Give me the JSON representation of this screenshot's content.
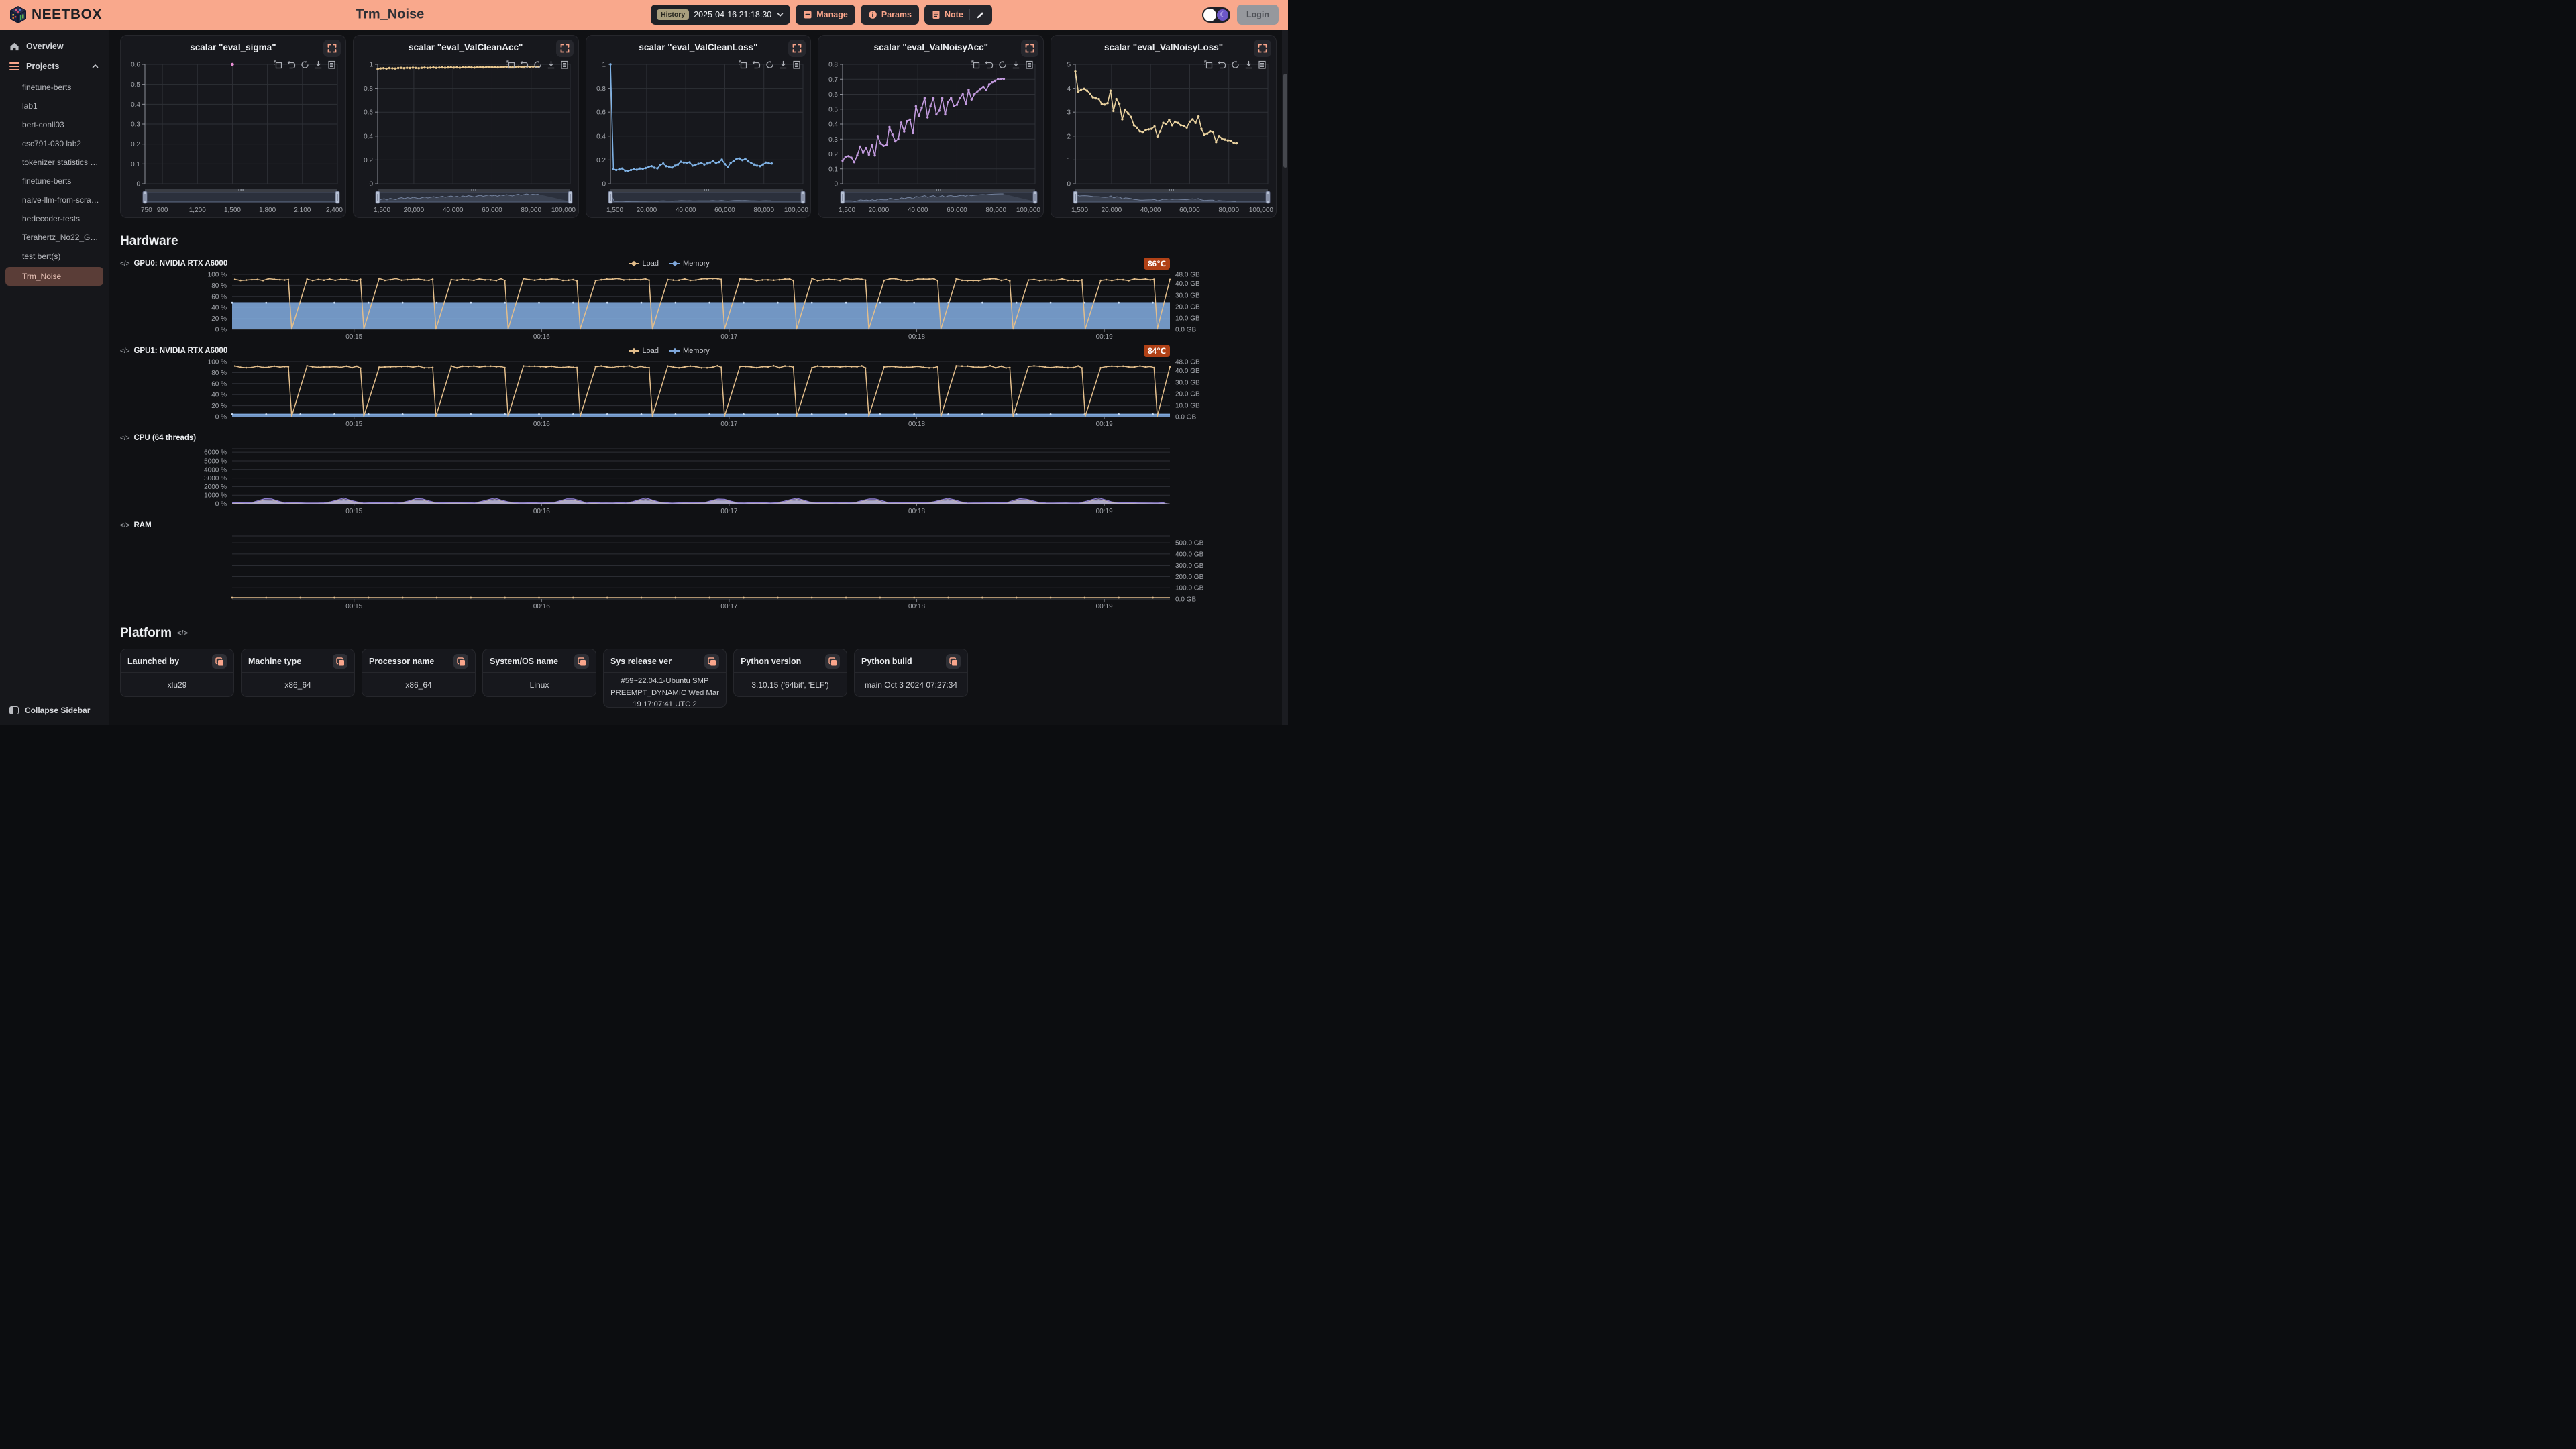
{
  "header": {
    "logo_text": "NEETBOX",
    "page_title": "Trm_Noise",
    "history_badge": "History",
    "history_value": "2025-04-16 21:18:30",
    "manage_label": "Manage",
    "params_label": "Params",
    "note_label": "Note",
    "login_label": "Login",
    "accent_color": "#F9A58B",
    "header_bg": "#F9A88C"
  },
  "sidebar": {
    "overview_label": "Overview",
    "projects_label": "Projects",
    "projects": [
      "finetune-berts",
      "lab1",
      "bert-conll03",
      "csc791-030 lab2",
      "tokenizer statistics llama…",
      "finetune-berts",
      "naive-llm-from-scratch",
      "hedecoder-tests",
      "Terahertz_No22_Gl261_gl…",
      "test bert(s)",
      "Trm_Noise"
    ],
    "selected": "Trm_Noise",
    "collapse_label": "Collapse Sidebar"
  },
  "sections": {
    "hardware_title": "Hardware",
    "platform_title": "Platform"
  },
  "ui": {
    "code_glyph": "</>",
    "moon_glyph": "☾",
    "toolbox_icons": [
      "zoom-select",
      "restore",
      "refresh",
      "download",
      "data-view"
    ],
    "temp_badge_color": "#b04116"
  },
  "platform": {
    "cards": [
      {
        "label": "Launched by",
        "value": "xlu29"
      },
      {
        "label": "Machine type",
        "value": "x86_64"
      },
      {
        "label": "Processor name",
        "value": "x86_64"
      },
      {
        "label": "System/OS name",
        "value": "Linux"
      },
      {
        "label": "Sys release ver",
        "value": "#59~22.04.1-Ubuntu SMP PREEMPT_DYNAMIC Wed Mar 19 17:07:41 UTC 2"
      },
      {
        "label": "Python version",
        "value": "3.10.15 ('64bit', 'ELF')"
      },
      {
        "label": "Python build",
        "value": "main Oct 3 2024 07:27:34"
      }
    ]
  },
  "chart_data": [
    {
      "kind": "scalar",
      "type": "scatter",
      "title": "scalar \"eval_sigma\"",
      "color": "#E88FD5",
      "x_range": [
        750,
        2400
      ],
      "x_tick_vals": [
        750,
        900,
        1200,
        1500,
        1800,
        2100,
        2400
      ],
      "x_tick_labels": [
        "750",
        "900",
        "1,200",
        "1,500",
        "1,800",
        "2,100",
        "2,400"
      ],
      "y_range": [
        0,
        0.6
      ],
      "y_tick_vals": [
        0,
        0.1,
        0.2,
        0.3,
        0.4,
        0.5,
        0.6
      ],
      "y_tick_labels": [
        "0",
        "0.1",
        "0.2",
        "0.3",
        "0.4",
        "0.5",
        "0.6"
      ],
      "points": [
        [
          1500,
          0.6
        ]
      ]
    },
    {
      "kind": "scalar",
      "type": "line",
      "title": "scalar \"eval_ValCleanAcc\"",
      "color": "#E8C78E",
      "x_range": [
        1500,
        100000
      ],
      "x_tick_vals": [
        1500,
        20000,
        40000,
        60000,
        80000,
        100000
      ],
      "x_tick_labels": [
        "1,500",
        "20,000",
        "40,000",
        "60,000",
        "80,000",
        "100,000"
      ],
      "y_range": [
        0,
        1
      ],
      "y_tick_vals": [
        0,
        0.2,
        0.4,
        0.6,
        0.8,
        1
      ],
      "y_tick_labels": [
        "0",
        "0.2",
        "0.4",
        "0.6",
        "0.8",
        "1"
      ],
      "x_start": 1500,
      "x_step": 1500,
      "y": [
        0.96,
        0.966,
        0.968,
        0.964,
        0.969,
        0.967,
        0.965,
        0.969,
        0.971,
        0.968,
        0.971,
        0.969,
        0.972,
        0.97,
        0.968,
        0.971,
        0.973,
        0.97,
        0.972,
        0.974,
        0.971,
        0.973,
        0.975,
        0.972,
        0.974,
        0.976,
        0.973,
        0.975,
        0.972,
        0.976,
        0.974,
        0.977,
        0.975,
        0.973,
        0.976,
        0.978,
        0.975,
        0.977,
        0.979,
        0.976,
        0.978,
        0.975,
        0.979,
        0.977,
        0.98,
        0.978,
        0.976,
        0.979,
        0.981,
        0.978,
        0.98,
        0.982,
        0.979,
        0.981,
        0.98,
        0.981
      ]
    },
    {
      "kind": "scalar",
      "type": "line",
      "title": "scalar \"eval_ValCleanLoss\"",
      "color": "#7FB2E5",
      "x_range": [
        1500,
        100000
      ],
      "x_tick_vals": [
        1500,
        20000,
        40000,
        60000,
        80000,
        100000
      ],
      "x_tick_labels": [
        "1,500",
        "20,000",
        "40,000",
        "60,000",
        "80,000",
        "100,000"
      ],
      "y_range": [
        0,
        1
      ],
      "y_tick_vals": [
        0,
        0.2,
        0.4,
        0.6,
        0.8,
        1
      ],
      "y_tick_labels": [
        "0",
        "0.2",
        "0.4",
        "0.6",
        "0.8",
        "1"
      ],
      "x_start": 1500,
      "x_step": 1500,
      "y": [
        1.0,
        0.125,
        0.115,
        0.12,
        0.128,
        0.11,
        0.106,
        0.115,
        0.122,
        0.118,
        0.128,
        0.125,
        0.132,
        0.14,
        0.148,
        0.135,
        0.13,
        0.155,
        0.17,
        0.148,
        0.143,
        0.136,
        0.152,
        0.162,
        0.185,
        0.178,
        0.175,
        0.18,
        0.152,
        0.158,
        0.168,
        0.175,
        0.162,
        0.17,
        0.178,
        0.192,
        0.172,
        0.182,
        0.202,
        0.165,
        0.14,
        0.175,
        0.192,
        0.208,
        0.212,
        0.198,
        0.21,
        0.188,
        0.175,
        0.162,
        0.152,
        0.148,
        0.162,
        0.178,
        0.172,
        0.17
      ]
    },
    {
      "kind": "scalar",
      "type": "line",
      "title": "scalar \"eval_ValNoisyAcc\"",
      "color": "#C39BDF",
      "x_range": [
        1500,
        100000
      ],
      "x_tick_vals": [
        1500,
        20000,
        40000,
        60000,
        80000,
        100000
      ],
      "x_tick_labels": [
        "1,500",
        "20,000",
        "40,000",
        "60,000",
        "80,000",
        "100,000"
      ],
      "y_range": [
        0,
        0.8
      ],
      "y_tick_vals": [
        0,
        0.1,
        0.2,
        0.3,
        0.4,
        0.5,
        0.6,
        0.7,
        0.8
      ],
      "y_tick_labels": [
        "0",
        "0.1",
        "0.2",
        "0.3",
        "0.4",
        "0.5",
        "0.6",
        "0.7",
        "0.8"
      ],
      "x_start": 1500,
      "x_step": 1500,
      "y": [
        0.155,
        0.18,
        0.185,
        0.175,
        0.145,
        0.19,
        0.25,
        0.21,
        0.24,
        0.195,
        0.26,
        0.19,
        0.32,
        0.27,
        0.255,
        0.26,
        0.38,
        0.33,
        0.285,
        0.3,
        0.41,
        0.35,
        0.42,
        0.43,
        0.34,
        0.52,
        0.455,
        0.51,
        0.575,
        0.445,
        0.52,
        0.575,
        0.465,
        0.49,
        0.575,
        0.465,
        0.55,
        0.575,
        0.52,
        0.53,
        0.575,
        0.6,
        0.535,
        0.63,
        0.565,
        0.6,
        0.62,
        0.635,
        0.65,
        0.63,
        0.665,
        0.68,
        0.69,
        0.7,
        0.702,
        0.703
      ]
    },
    {
      "kind": "scalar",
      "type": "line",
      "title": "scalar \"eval_ValNoisyLoss\"",
      "color": "#EBD3A0",
      "x_range": [
        1500,
        100000
      ],
      "x_tick_vals": [
        1500,
        20000,
        40000,
        60000,
        80000,
        100000
      ],
      "x_tick_labels": [
        "1,500",
        "20,000",
        "40,000",
        "60,000",
        "80,000",
        "100,000"
      ],
      "y_range": [
        0,
        5
      ],
      "y_tick_vals": [
        0,
        1,
        2,
        3,
        4,
        5
      ],
      "y_tick_labels": [
        "0",
        "1",
        "2",
        "3",
        "4",
        "5"
      ],
      "x_start": 1500,
      "x_step": 1500,
      "y": [
        4.7,
        3.85,
        3.95,
        3.98,
        3.9,
        3.78,
        3.62,
        3.58,
        3.55,
        3.35,
        3.32,
        3.38,
        3.9,
        3.05,
        3.55,
        3.35,
        2.7,
        3.1,
        2.95,
        2.8,
        2.45,
        2.35,
        2.2,
        2.15,
        2.25,
        2.28,
        2.3,
        2.4,
        1.98,
        2.2,
        2.55,
        2.5,
        2.68,
        2.45,
        2.6,
        2.55,
        2.45,
        2.42,
        2.35,
        2.6,
        2.7,
        2.55,
        2.82,
        2.3,
        2.05,
        2.1,
        2.2,
        2.15,
        1.75,
        2.0,
        1.9,
        1.85,
        1.82,
        1.8,
        1.72,
        1.7
      ]
    },
    {
      "kind": "hw",
      "type": "line",
      "label": "GPU0: NVIDIA RTX A6000",
      "temp": "86℃",
      "legend": [
        {
          "name": "Load",
          "color": "#E3BE8B"
        },
        {
          "name": "Memory",
          "color": "#7FA8DC"
        }
      ],
      "left_vals": [
        0,
        20,
        40,
        60,
        80,
        100
      ],
      "left_labels": [
        "0 %",
        "20 %",
        "40 %",
        "60 %",
        "80 %",
        "100 %"
      ],
      "left_range": [
        0,
        100
      ],
      "right_vals": [
        0,
        10,
        20,
        30,
        40,
        48
      ],
      "right_labels": [
        "0.0 GB",
        "10.0 GB",
        "20.0 GB",
        "30.0 GB",
        "40.0 GB",
        "48.0 GB"
      ],
      "right_range": [
        0,
        48
      ],
      "x_tick_labels": [
        "00:15",
        "00:16",
        "00:17",
        "00:18",
        "00:19"
      ],
      "series": [
        {
          "name": "Memory",
          "gen": "flat",
          "value": 23.3,
          "axis": "right",
          "fill": true,
          "color": "#7FA8DC",
          "marker_color": "#c9ddf5"
        },
        {
          "name": "Load",
          "gen": "load",
          "cycles": 13,
          "high": 90,
          "seed": 7,
          "color": "#E3BE8B"
        }
      ]
    },
    {
      "kind": "hw",
      "type": "line",
      "label": "GPU1: NVIDIA RTX A6000",
      "temp": "84℃",
      "legend": [
        {
          "name": "Load",
          "color": "#E3BE8B"
        },
        {
          "name": "Memory",
          "color": "#7FA8DC"
        }
      ],
      "left_vals": [
        0,
        20,
        40,
        60,
        80,
        100
      ],
      "left_labels": [
        "0 %",
        "20 %",
        "40 %",
        "60 %",
        "80 %",
        "100 %"
      ],
      "left_range": [
        0,
        100
      ],
      "right_vals": [
        0,
        10,
        20,
        30,
        40,
        48
      ],
      "right_labels": [
        "0.0 GB",
        "10.0 GB",
        "20.0 GB",
        "30.0 GB",
        "40.0 GB",
        "48.0 GB"
      ],
      "right_range": [
        0,
        48
      ],
      "x_tick_labels": [
        "00:15",
        "00:16",
        "00:17",
        "00:18",
        "00:19"
      ],
      "series": [
        {
          "name": "Memory",
          "gen": "flat",
          "value": 2.1,
          "axis": "right",
          "fill": true,
          "color": "#7FA8DC",
          "marker_color": "#c9ddf5"
        },
        {
          "name": "Load",
          "gen": "load",
          "cycles": 13,
          "high": 90,
          "seed": 11,
          "color": "#E3BE8B"
        }
      ]
    },
    {
      "kind": "hw",
      "type": "line",
      "label": "CPU (64 threads)",
      "left_vals": [
        0,
        1000,
        2000,
        3000,
        4000,
        5000,
        6000
      ],
      "left_labels": [
        "0 %",
        "1000 %",
        "2000 %",
        "3000 %",
        "4000 %",
        "5000 %",
        "6000 %"
      ],
      "left_range": [
        0,
        6400
      ],
      "top_line": true,
      "x_tick_labels": [
        "00:15",
        "00:16",
        "00:17",
        "00:18",
        "00:19"
      ],
      "series": [
        {
          "gen": "cpu",
          "base": 25,
          "peak": 100,
          "color": "#C9C9CE",
          "seed": 3
        },
        {
          "gen": "cpu",
          "base": 35,
          "peak": 150,
          "color": "#B9DFC0",
          "seed": 4
        },
        {
          "gen": "cpu",
          "base": 45,
          "peak": 220,
          "color": "#E3A8C5",
          "seed": 5
        },
        {
          "gen": "cpu",
          "base": 55,
          "peak": 300,
          "color": "#9FC2E8",
          "seed": 6
        },
        {
          "gen": "cpu",
          "base": 70,
          "peak": 430,
          "color": "#E6DFAE",
          "seed": 7
        },
        {
          "gen": "cpu",
          "base": 110,
          "peak": 560,
          "color": "#8F7FD0",
          "seed": 8
        }
      ]
    },
    {
      "kind": "hw",
      "type": "line",
      "label": "RAM",
      "grid": "right",
      "ram": true,
      "left_range": [
        0,
        100
      ],
      "top_line": true,
      "right_vals": [
        0,
        100,
        200,
        300,
        400,
        500
      ],
      "right_labels": [
        "0.0 GB",
        "100.0 GB",
        "200.0 GB",
        "300.0 GB",
        "400.0 GB",
        "500.0 GB"
      ],
      "right_range": [
        0,
        560
      ],
      "x_tick_labels": [
        "00:15",
        "00:16",
        "00:17",
        "00:18",
        "00:19"
      ],
      "series": [
        {
          "gen": "flat",
          "value": 12,
          "axis": "right",
          "color": "#E3BE8B",
          "marker_color": "#E3BE8D",
          "markers": true
        }
      ]
    }
  ]
}
